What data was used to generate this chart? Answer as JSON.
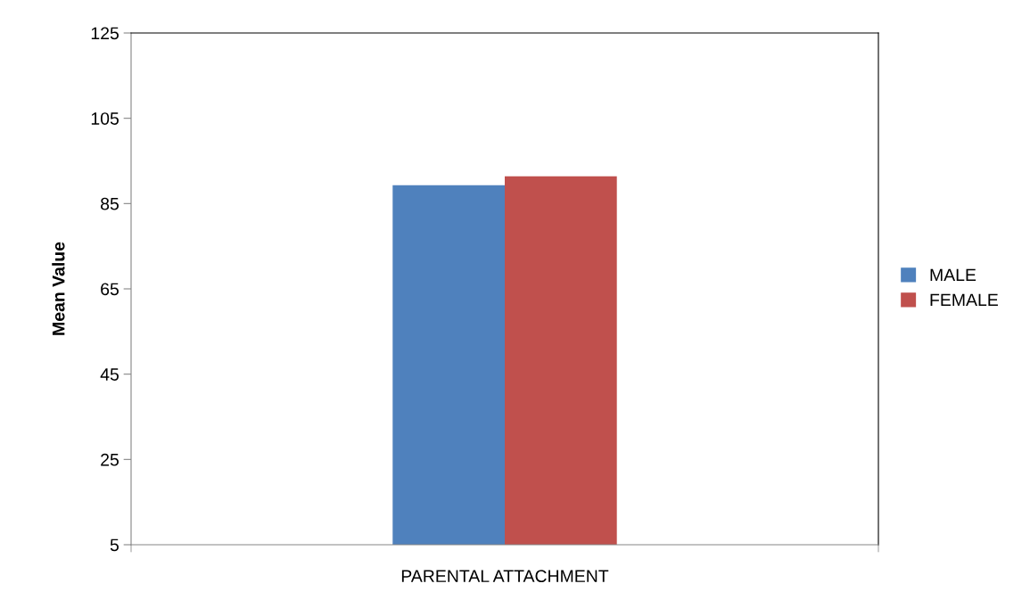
{
  "chart_data": {
    "type": "bar",
    "ylabel": "Mean Value",
    "categories": [
      "PARENTAL ATTACHMENT"
    ],
    "series": [
      {
        "name": "MALE",
        "color": "#4f81bd",
        "values": [
          89.3
        ]
      },
      {
        "name": "FEMALE",
        "color": "#c0504d",
        "values": [
          91.4
        ]
      }
    ],
    "ylim": [
      5,
      125
    ],
    "yticks": [
      5,
      25,
      45,
      65,
      85,
      105,
      125
    ],
    "grid": false,
    "legend": "right"
  }
}
